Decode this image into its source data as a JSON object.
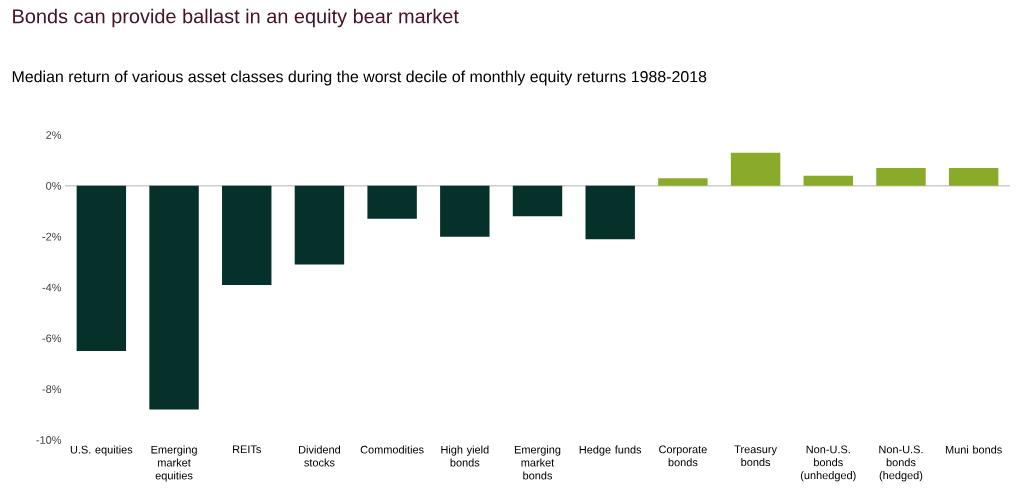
{
  "chart_data": {
    "type": "bar",
    "title": "Bonds can provide ballast in an equity bear market",
    "subtitle": "Median return of various asset classes during the worst decile of monthly equity returns 1988-2018",
    "categories": [
      "U.S. equities",
      "Emerging market equities",
      "REITs",
      "Dividend stocks",
      "Commodities",
      "High yield bonds",
      "Emerging market bonds",
      "Hedge funds",
      "Corporate bonds",
      "Treasury bonds",
      "Non-U.S. bonds (unhedged)",
      "Non-U.S. bonds (hedged)",
      "Muni bonds"
    ],
    "values": [
      -6.5,
      -8.8,
      -3.9,
      -3.1,
      -1.3,
      -2.0,
      -1.2,
      -2.1,
      0.3,
      1.3,
      0.4,
      0.7,
      0.7
    ],
    "colors": [
      "#06302a",
      "#06302a",
      "#06302a",
      "#06302a",
      "#06302a",
      "#06302a",
      "#06302a",
      "#06302a",
      "#8aab2a",
      "#8aab2a",
      "#8aab2a",
      "#8aab2a",
      "#8aab2a"
    ],
    "ylim": [
      -10,
      2
    ],
    "yticks": [
      {
        "value": -10,
        "label": "-10%"
      },
      {
        "value": -8,
        "label": "-8%"
      },
      {
        "value": -6,
        "label": "-6%"
      },
      {
        "value": -4,
        "label": "-4%"
      },
      {
        "value": -2,
        "label": "-2%"
      },
      {
        "value": 0,
        "label": "0%"
      },
      {
        "value": 2,
        "label": "2%"
      }
    ]
  }
}
